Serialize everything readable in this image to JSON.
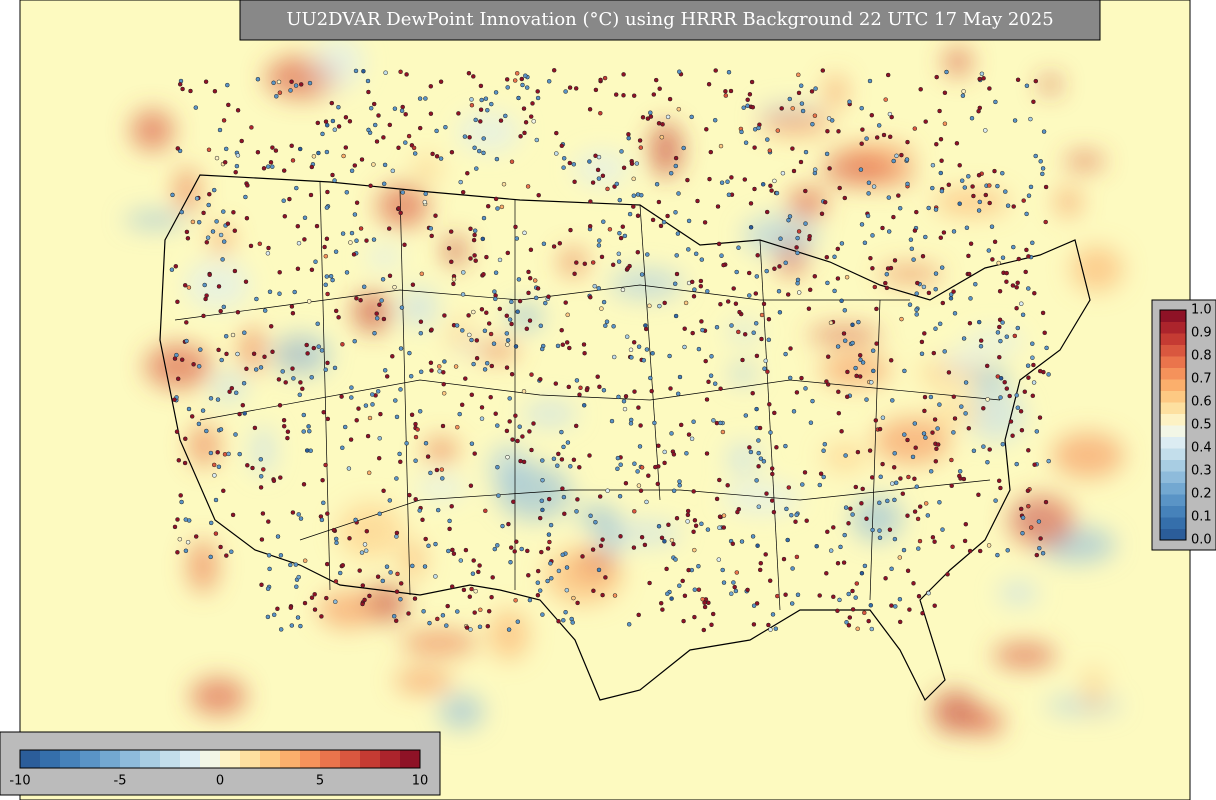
{
  "title": "UU2DVAR DewPoint Innovation (°C) using HRRR Background 22 UTC 17 May 2025",
  "right_colorbar": {
    "labels": [
      "1.0",
      "0.9",
      "0.8",
      "0.7",
      "0.6",
      "0.5",
      "0.4",
      "0.3",
      "0.2",
      "0.1",
      "0.0"
    ]
  },
  "bottom_colorbar": {
    "labels": [
      -10,
      -5,
      0,
      5,
      10
    ]
  }
}
